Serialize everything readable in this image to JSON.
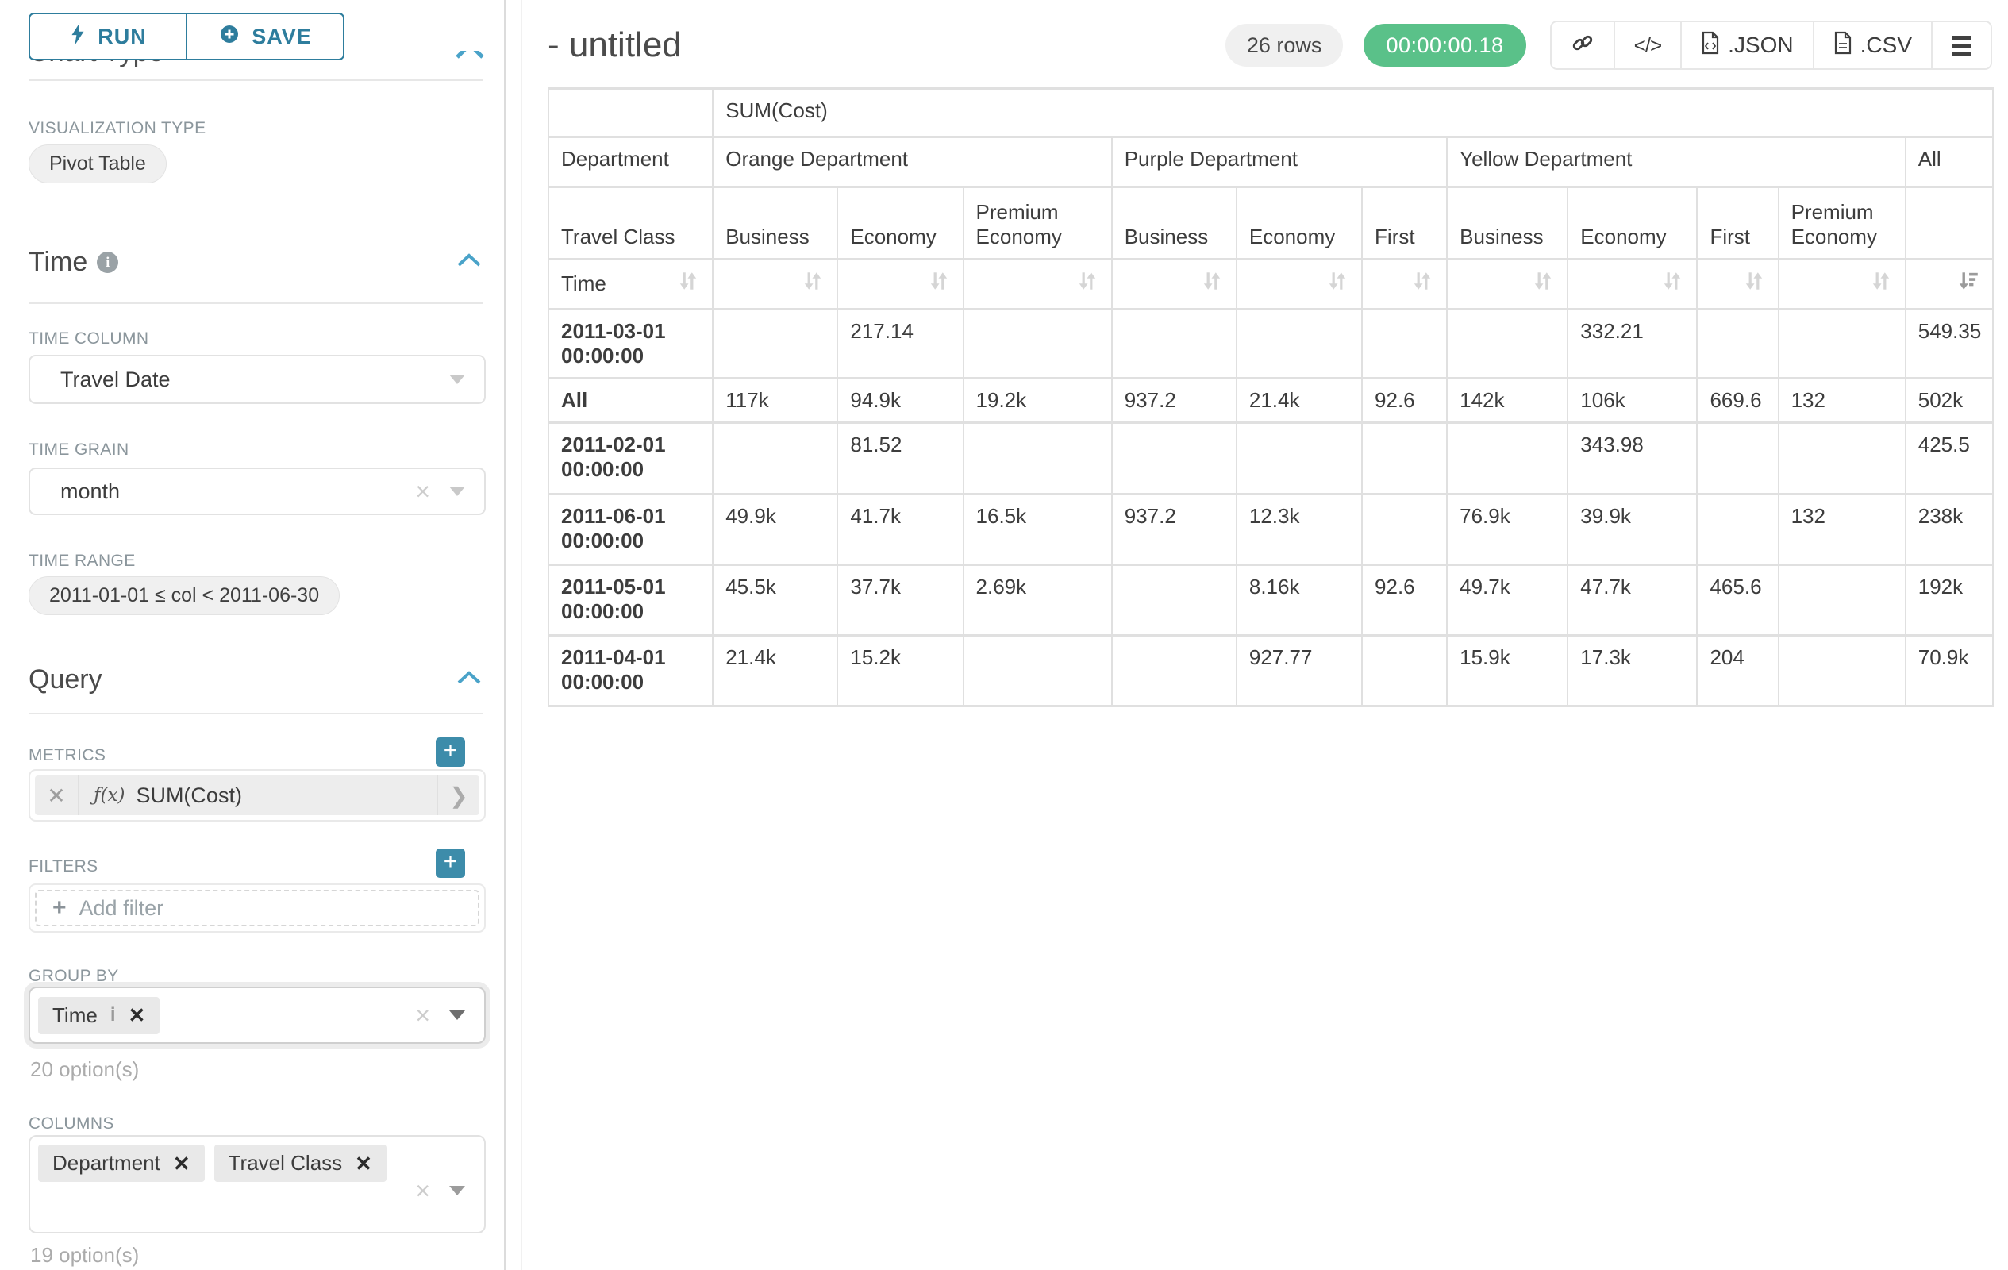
{
  "colors": {
    "accent_teal": "#2e7d9d",
    "success_green": "#5ac189",
    "caret_blue": "#4aa3c9"
  },
  "sidebar": {
    "run_button": "RUN",
    "save_button": "SAVE",
    "chart_type_heading": "Chart Type",
    "visualization_type_label": "VISUALIZATION TYPE",
    "visualization_type_value": "Pivot Table",
    "time": {
      "title": "Time",
      "time_column_label": "TIME COLUMN",
      "time_column_value": "Travel Date",
      "time_grain_label": "TIME GRAIN",
      "time_grain_value": "month",
      "time_range_label": "TIME RANGE",
      "time_range_value": "2011-01-01 ≤ col < 2011-06-30"
    },
    "query": {
      "title": "Query",
      "metrics_label": "METRICS",
      "metric_fx": "ƒ(x)",
      "metric_value": "SUM(Cost)",
      "filters_label": "FILTERS",
      "add_filter_placeholder": "Add filter",
      "group_by_label": "GROUP BY",
      "group_by_values": [
        "Time"
      ],
      "group_by_hint": "20 option(s)",
      "columns_label": "COLUMNS",
      "columns_values": [
        "Department",
        "Travel Class"
      ],
      "columns_hint": "19 option(s)"
    }
  },
  "header": {
    "title": "- untitled",
    "rows_badge": "26 rows",
    "duration_badge": "00:00:00.18",
    "export_json_label": ".JSON",
    "export_csv_label": ".CSV"
  },
  "pivot_table": {
    "metric_header": "SUM(Cost)",
    "row_dimension_label": "Department",
    "column_groups": [
      {
        "label": "Orange Department",
        "span": 3
      },
      {
        "label": "Purple Department",
        "span": 3
      },
      {
        "label": "Yellow Department",
        "span": 4
      },
      {
        "label": "All",
        "span": 1
      }
    ],
    "class_row_label": "Travel Class",
    "class_columns": [
      "Business",
      "Economy",
      "Premium Economy",
      "Business",
      "Economy",
      "First",
      "Business",
      "Economy",
      "First",
      "Premium Economy",
      ""
    ],
    "time_row_label": "Time",
    "sorted_column_index": 10,
    "rows": [
      {
        "time": "2011-03-01 00:00:00",
        "values": [
          "",
          "217.14",
          "",
          "",
          "",
          "",
          "",
          "332.21",
          "",
          "",
          "549.35"
        ]
      },
      {
        "time": "All",
        "values": [
          "117k",
          "94.9k",
          "19.2k",
          "937.2",
          "21.4k",
          "92.6",
          "142k",
          "106k",
          "669.6",
          "132",
          "502k"
        ]
      },
      {
        "time": "2011-02-01 00:00:00",
        "values": [
          "",
          "81.52",
          "",
          "",
          "",
          "",
          "",
          "343.98",
          "",
          "",
          "425.5"
        ]
      },
      {
        "time": "2011-06-01 00:00:00",
        "values": [
          "49.9k",
          "41.7k",
          "16.5k",
          "937.2",
          "12.3k",
          "",
          "76.9k",
          "39.9k",
          "",
          "132",
          "238k"
        ]
      },
      {
        "time": "2011-05-01 00:00:00",
        "values": [
          "45.5k",
          "37.7k",
          "2.69k",
          "",
          "8.16k",
          "92.6",
          "49.7k",
          "47.7k",
          "465.6",
          "",
          "192k"
        ]
      },
      {
        "time": "2011-04-01 00:00:00",
        "values": [
          "21.4k",
          "15.2k",
          "",
          "",
          "927.77",
          "",
          "15.9k",
          "17.3k",
          "204",
          "",
          "70.9k"
        ]
      }
    ]
  }
}
